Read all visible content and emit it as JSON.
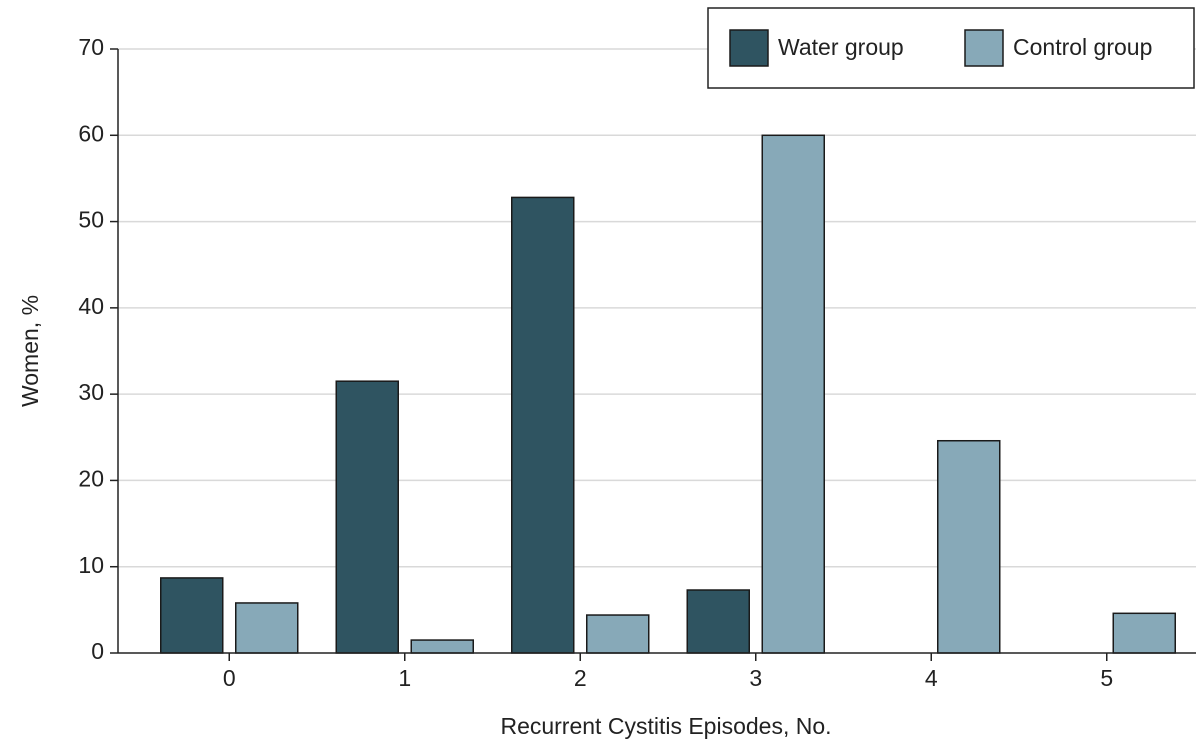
{
  "chart_data": {
    "type": "bar",
    "xlabel": "Recurrent Cystitis Episodes, No.",
    "ylabel": "Women, %",
    "categories": [
      "0",
      "1",
      "2",
      "3",
      "4",
      "5"
    ],
    "series": [
      {
        "name": "Water group",
        "color": "#2f5461",
        "values": [
          8.7,
          31.5,
          52.8,
          7.3,
          0,
          0
        ]
      },
      {
        "name": "Control group",
        "color": "#87a9b8",
        "values": [
          5.8,
          1.5,
          4.4,
          60.0,
          24.6,
          4.6
        ]
      }
    ],
    "ylim": [
      0,
      70
    ],
    "yticks": [
      0,
      10,
      20,
      30,
      40,
      50,
      60,
      70
    ],
    "grid": true,
    "legend": "upper right"
  }
}
